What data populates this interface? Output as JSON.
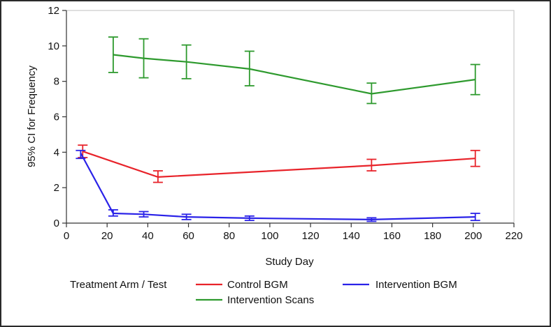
{
  "chart_data": {
    "type": "line",
    "title": "",
    "xlabel": "Study Day",
    "ylabel": "95% CI for Frequency",
    "xlim": [
      0,
      220
    ],
    "ylim": [
      0,
      12
    ],
    "xticks": [
      0,
      20,
      40,
      60,
      80,
      100,
      120,
      140,
      160,
      180,
      200,
      220
    ],
    "yticks": [
      0,
      2,
      4,
      6,
      8,
      10,
      12
    ],
    "grid": false,
    "legend": {
      "title": "Treatment Arm / Test",
      "placement": "bottom"
    },
    "series": [
      {
        "name": "Control BGM",
        "color": "#e8232a",
        "points": [
          {
            "x": 8,
            "y": 4.05,
            "lo": 3.7,
            "hi": 4.4
          },
          {
            "x": 45,
            "y": 2.6,
            "lo": 2.3,
            "hi": 2.95
          },
          {
            "x": 150,
            "y": 3.25,
            "lo": 2.95,
            "hi": 3.6
          },
          {
            "x": 201,
            "y": 3.65,
            "lo": 3.2,
            "hi": 4.1
          }
        ]
      },
      {
        "name": "Intervention BGM",
        "color": "#2a22e8",
        "points": [
          {
            "x": 7,
            "y": 3.95,
            "lo": 3.65,
            "hi": 4.1
          },
          {
            "x": 23,
            "y": 0.55,
            "lo": 0.4,
            "hi": 0.75
          },
          {
            "x": 38,
            "y": 0.5,
            "lo": 0.35,
            "hi": 0.65
          },
          {
            "x": 59,
            "y": 0.35,
            "lo": 0.2,
            "hi": 0.5
          },
          {
            "x": 90,
            "y": 0.28,
            "lo": 0.15,
            "hi": 0.4
          },
          {
            "x": 150,
            "y": 0.2,
            "lo": 0.1,
            "hi": 0.3
          },
          {
            "x": 201,
            "y": 0.35,
            "lo": 0.15,
            "hi": 0.55
          }
        ]
      },
      {
        "name": "Intervention Scans",
        "color": "#2e9a2e",
        "points": [
          {
            "x": 23,
            "y": 9.5,
            "lo": 8.5,
            "hi": 10.5
          },
          {
            "x": 38,
            "y": 9.3,
            "lo": 8.2,
            "hi": 10.4
          },
          {
            "x": 59,
            "y": 9.1,
            "lo": 8.15,
            "hi": 10.05
          },
          {
            "x": 90,
            "y": 8.7,
            "lo": 7.75,
            "hi": 9.7
          },
          {
            "x": 150,
            "y": 7.3,
            "lo": 6.75,
            "hi": 7.9
          },
          {
            "x": 201,
            "y": 8.1,
            "lo": 7.25,
            "hi": 8.95
          }
        ]
      }
    ]
  }
}
